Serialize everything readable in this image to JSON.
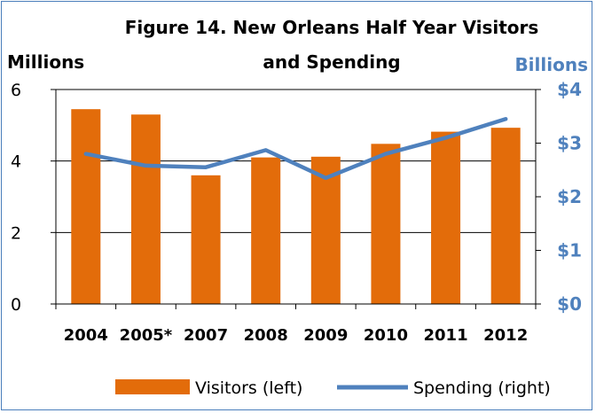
{
  "colors": {
    "bar": "#e36c0a",
    "line": "#4f81bd",
    "grid": "#000000",
    "frame": "#4a7ebb"
  },
  "chart_data": {
    "type": "bar",
    "title_line1": "Figure 14. New Orleans Half Year Visitors",
    "title_line2": "and Spending",
    "left_axis_label": "Millions",
    "right_axis_label": "Billions",
    "categories": [
      "2004",
      "2005*",
      "2007",
      "2008",
      "2009",
      "2010",
      "2011",
      "2012"
    ],
    "series": [
      {
        "name": "Visitors (left)",
        "type": "bar",
        "axis": "left",
        "values": [
          5.45,
          5.3,
          3.6,
          4.1,
          4.12,
          4.48,
          4.82,
          4.93
        ]
      },
      {
        "name": "Spending (right)",
        "type": "line",
        "axis": "right",
        "values": [
          2.8,
          2.58,
          2.55,
          2.87,
          2.35,
          2.8,
          3.1,
          3.45
        ]
      }
    ],
    "ylim_left": [
      0,
      6
    ],
    "yticks_left": [
      "0",
      "2",
      "4",
      "6"
    ],
    "ylim_right": [
      0,
      4
    ],
    "yticks_right": [
      "$0",
      "$1",
      "$2",
      "$3",
      "$4"
    ],
    "grid": true,
    "legend_position": "bottom"
  }
}
